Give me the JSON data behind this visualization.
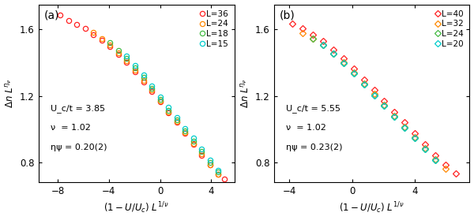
{
  "panel_a": {
    "title": "(a)",
    "xlim": [
      -9.5,
      5.8
    ],
    "ylim": [
      0.68,
      1.75
    ],
    "xticks": [
      -8,
      -4,
      0,
      4
    ],
    "yticks": [
      0.8,
      1.2,
      1.6
    ],
    "ann_line1": "U_c/t = 3.85",
    "ann_line2": "ν  = 1.02",
    "ann_line3": "ηψ = 0.20(2)",
    "series": [
      {
        "label": "L=36",
        "color": "#ff2020",
        "marker": "o",
        "x": [
          -7.8,
          -7.15,
          -6.5,
          -5.85,
          -5.2,
          -4.55,
          -3.9,
          -3.25,
          -2.6,
          -1.95,
          -1.3,
          -0.65,
          0.0,
          0.65,
          1.3,
          1.95,
          2.6,
          3.25,
          3.9,
          4.55,
          5.0
        ],
        "y": [
          1.685,
          1.655,
          1.63,
          1.605,
          1.57,
          1.535,
          1.495,
          1.45,
          1.4,
          1.345,
          1.285,
          1.225,
          1.165,
          1.1,
          1.04,
          0.975,
          0.91,
          0.845,
          0.785,
          0.73,
          0.7
        ]
      },
      {
        "label": "L=24",
        "color": "#ff8800",
        "marker": "o",
        "x": [
          -5.2,
          -4.55,
          -3.9,
          -3.25,
          -2.6,
          -1.95,
          -1.3,
          -0.65,
          0.0,
          0.65,
          1.3,
          1.95,
          2.6,
          3.25,
          3.9,
          4.55
        ],
        "y": [
          1.58,
          1.545,
          1.505,
          1.46,
          1.41,
          1.355,
          1.295,
          1.235,
          1.17,
          1.105,
          1.045,
          0.98,
          0.915,
          0.85,
          0.785,
          0.73
        ]
      },
      {
        "label": "L=18",
        "color": "#44bb44",
        "marker": "o",
        "x": [
          -3.9,
          -3.25,
          -2.6,
          -1.95,
          -1.3,
          -0.65,
          0.0,
          0.65,
          1.3,
          1.95,
          2.6,
          3.25,
          3.9,
          4.55
        ],
        "y": [
          1.52,
          1.475,
          1.425,
          1.37,
          1.31,
          1.245,
          1.18,
          1.115,
          1.055,
          0.99,
          0.93,
          0.865,
          0.8,
          0.745
        ]
      },
      {
        "label": "L=15",
        "color": "#00cccc",
        "marker": "o",
        "x": [
          -2.6,
          -1.95,
          -1.3,
          -0.65,
          0.0,
          0.65,
          1.3,
          1.95,
          2.6,
          3.25,
          3.9,
          4.55
        ],
        "y": [
          1.44,
          1.385,
          1.325,
          1.26,
          1.195,
          1.13,
          1.07,
          1.005,
          0.945,
          0.88,
          0.815,
          0.755
        ]
      }
    ]
  },
  "panel_b": {
    "title": "(b)",
    "xlim": [
      -5.0,
      7.5
    ],
    "ylim": [
      0.68,
      1.75
    ],
    "xticks": [
      -4,
      0,
      4
    ],
    "yticks": [
      0.8,
      1.2,
      1.6
    ],
    "ann_line1": "U_c/t = 5.55",
    "ann_line2": "ν  = 1.02",
    "ann_line3": "ηψ = 0.23(2)",
    "series": [
      {
        "label": "L=40",
        "color": "#ff2020",
        "marker": "D",
        "x": [
          -3.8,
          -3.15,
          -2.5,
          -1.85,
          -1.2,
          -0.55,
          0.1,
          0.75,
          1.4,
          2.05,
          2.7,
          3.35,
          4.0,
          4.65,
          5.3,
          5.95,
          6.6
        ],
        "y": [
          1.635,
          1.605,
          1.57,
          1.53,
          1.48,
          1.425,
          1.365,
          1.3,
          1.235,
          1.17,
          1.105,
          1.04,
          0.975,
          0.91,
          0.845,
          0.785,
          0.735
        ]
      },
      {
        "label": "L=32",
        "color": "#ff8800",
        "marker": "D",
        "x": [
          -3.15,
          -2.5,
          -1.85,
          -1.2,
          -0.55,
          0.1,
          0.75,
          1.4,
          2.05,
          2.7,
          3.35,
          4.0,
          4.65,
          5.3,
          5.95
        ],
        "y": [
          1.575,
          1.545,
          1.505,
          1.455,
          1.4,
          1.34,
          1.275,
          1.21,
          1.145,
          1.08,
          1.015,
          0.95,
          0.885,
          0.82,
          0.76
        ]
      },
      {
        "label": "L=24",
        "color": "#44bb44",
        "marker": "D",
        "x": [
          -2.5,
          -1.85,
          -1.2,
          -0.55,
          0.1,
          0.75,
          1.4,
          2.05,
          2.7,
          3.35,
          4.0,
          4.65,
          5.3
        ],
        "y": [
          1.545,
          1.505,
          1.455,
          1.395,
          1.335,
          1.27,
          1.205,
          1.14,
          1.075,
          1.01,
          0.945,
          0.88,
          0.815
        ]
      },
      {
        "label": "L=20",
        "color": "#00cccc",
        "marker": "D",
        "x": [
          -1.85,
          -1.2,
          -0.55,
          0.1,
          0.75,
          1.4,
          2.05,
          2.7,
          3.35,
          4.0,
          4.65,
          5.3
        ],
        "y": [
          1.505,
          1.455,
          1.395,
          1.335,
          1.27,
          1.205,
          1.14,
          1.075,
          1.01,
          0.945,
          0.88,
          0.815
        ]
      }
    ]
  }
}
